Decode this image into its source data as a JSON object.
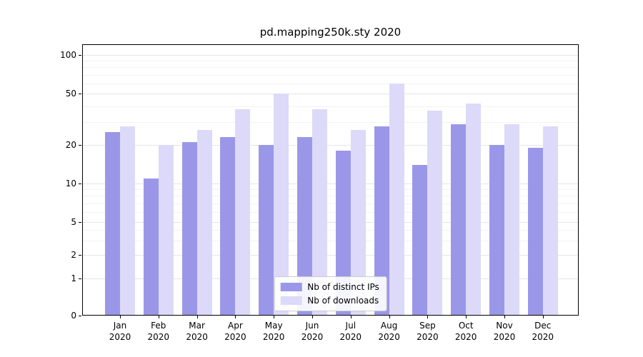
{
  "chart_data": {
    "type": "bar",
    "title": "pd.mapping250k.sty 2020",
    "categories": [
      "Jan",
      "Feb",
      "Mar",
      "Apr",
      "May",
      "Jun",
      "Jul",
      "Aug",
      "Sep",
      "Oct",
      "Nov",
      "Dec"
    ],
    "x_year_label": "2020",
    "series": [
      {
        "name": "Nb of distinct IPs",
        "color": "#9b97e8",
        "values": [
          25,
          11,
          21,
          23,
          20,
          23,
          18,
          28,
          14,
          29,
          20,
          19
        ]
      },
      {
        "name": "Nb of downloads",
        "color": "#dcdaf8",
        "values": [
          28,
          20,
          26,
          38,
          50,
          38,
          26,
          60,
          37,
          42,
          29,
          28
        ]
      }
    ],
    "y_ticks": [
      0,
      1,
      2,
      5,
      10,
      20,
      50,
      100
    ],
    "y_scale": "log-like",
    "ylim": [
      0,
      120
    ],
    "grid": true,
    "legend_position": "lower center"
  }
}
